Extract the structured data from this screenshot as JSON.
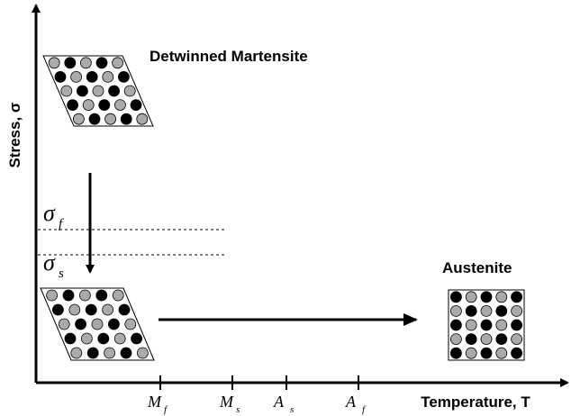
{
  "axes": {
    "y_label": "Stress, σ",
    "x_label": "Temperature, T"
  },
  "phases": {
    "detwinned": "Detwinned Martensite",
    "austenite": "Austenite"
  },
  "stress_levels": [
    {
      "symbol": "σ",
      "subscript": "f"
    },
    {
      "symbol": "σ",
      "subscript": "s"
    }
  ],
  "temperatures": [
    {
      "symbol": "M",
      "subscript": "f"
    },
    {
      "symbol": "M",
      "subscript": "s"
    },
    {
      "symbol": "A",
      "subscript": "s"
    },
    {
      "symbol": "A",
      "subscript": "f"
    }
  ]
}
